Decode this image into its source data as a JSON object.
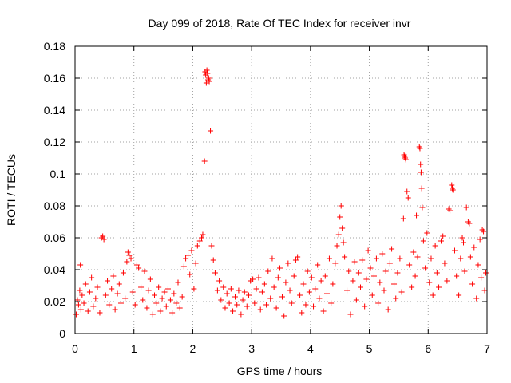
{
  "chart_data": {
    "type": "scatter",
    "title": "Day 099 of 2018, Rate Of TEC Index for receiver invr",
    "xlabel": "GPS time / hours",
    "ylabel": "ROTI / TECUs",
    "xlim": [
      0,
      7
    ],
    "ylim": [
      0,
      0.18
    ],
    "x_ticks": [
      0,
      1,
      2,
      3,
      4,
      5,
      6,
      7
    ],
    "x_tick_labels": [
      "0",
      "1",
      "2",
      "3",
      "4",
      "5",
      "6",
      "7"
    ],
    "y_ticks": [
      0,
      0.02,
      0.04,
      0.06,
      0.08,
      0.1,
      0.12,
      0.14,
      0.16,
      0.18
    ],
    "y_tick_labels": [
      "0",
      "0.02",
      "0.04",
      "0.06",
      "0.08",
      "0.1",
      "0.12",
      "0.14",
      "0.16",
      "0.18"
    ],
    "grid": true,
    "marker": "+",
    "color": "#ff0000",
    "series": [
      {
        "name": "ROTI",
        "points": [
          [
            0.02,
            0.012
          ],
          [
            0.04,
            0.021
          ],
          [
            0.06,
            0.018
          ],
          [
            0.08,
            0.027
          ],
          [
            0.1,
            0.015
          ],
          [
            0.12,
            0.024
          ],
          [
            0.09,
            0.043
          ],
          [
            0.15,
            0.019
          ],
          [
            0.18,
            0.031
          ],
          [
            0.22,
            0.014
          ],
          [
            0.25,
            0.026
          ],
          [
            0.28,
            0.035
          ],
          [
            0.31,
            0.017
          ],
          [
            0.35,
            0.022
          ],
          [
            0.38,
            0.029
          ],
          [
            0.42,
            0.013
          ],
          [
            0.45,
            0.06
          ],
          [
            0.47,
            0.061
          ],
          [
            0.49,
            0.059
          ],
          [
            0.52,
            0.024
          ],
          [
            0.55,
            0.033
          ],
          [
            0.58,
            0.018
          ],
          [
            0.62,
            0.028
          ],
          [
            0.65,
            0.036
          ],
          [
            0.68,
            0.015
          ],
          [
            0.72,
            0.025
          ],
          [
            0.75,
            0.031
          ],
          [
            0.78,
            0.019
          ],
          [
            0.82,
            0.038
          ],
          [
            0.85,
            0.022
          ],
          [
            0.88,
            0.045
          ],
          [
            0.9,
            0.051
          ],
          [
            0.92,
            0.049
          ],
          [
            0.95,
            0.047
          ],
          [
            0.98,
            0.026
          ],
          [
            1.02,
            0.018
          ],
          [
            1.05,
            0.043
          ],
          [
            1.08,
            0.041
          ],
          [
            1.12,
            0.029
          ],
          [
            1.15,
            0.021
          ],
          [
            1.18,
            0.039
          ],
          [
            1.22,
            0.016
          ],
          [
            1.25,
            0.027
          ],
          [
            1.28,
            0.034
          ],
          [
            1.32,
            0.012
          ],
          [
            1.35,
            0.024
          ],
          [
            1.38,
            0.019
          ],
          [
            1.42,
            0.029
          ],
          [
            1.45,
            0.014
          ],
          [
            1.48,
            0.022
          ],
          [
            1.52,
            0.026
          ],
          [
            1.55,
            0.017
          ],
          [
            1.58,
            0.028
          ],
          [
            1.62,
            0.021
          ],
          [
            1.65,
            0.013
          ],
          [
            1.68,
            0.025
          ],
          [
            1.72,
            0.019
          ],
          [
            1.75,
            0.032
          ],
          [
            1.78,
            0.016
          ],
          [
            1.82,
            0.023
          ],
          [
            1.85,
            0.042
          ],
          [
            1.88,
            0.047
          ],
          [
            1.92,
            0.049
          ],
          [
            1.95,
            0.037
          ],
          [
            1.98,
            0.052
          ],
          [
            2.02,
            0.028
          ],
          [
            2.05,
            0.044
          ],
          [
            2.08,
            0.055
          ],
          [
            2.12,
            0.058
          ],
          [
            2.15,
            0.06
          ],
          [
            2.17,
            0.062
          ],
          [
            2.2,
            0.108
          ],
          [
            2.21,
            0.164
          ],
          [
            2.22,
            0.162
          ],
          [
            2.23,
            0.157
          ],
          [
            2.24,
            0.165
          ],
          [
            2.25,
            0.163
          ],
          [
            2.26,
            0.159
          ],
          [
            2.27,
            0.16
          ],
          [
            2.28,
            0.158
          ],
          [
            2.3,
            0.127
          ],
          [
            2.32,
            0.055
          ],
          [
            2.35,
            0.046
          ],
          [
            2.38,
            0.038
          ],
          [
            2.42,
            0.027
          ],
          [
            2.45,
            0.033
          ],
          [
            2.48,
            0.021
          ],
          [
            2.52,
            0.029
          ],
          [
            2.55,
            0.016
          ],
          [
            2.58,
            0.025
          ],
          [
            2.62,
            0.019
          ],
          [
            2.65,
            0.028
          ],
          [
            2.68,
            0.014
          ],
          [
            2.72,
            0.023
          ],
          [
            2.75,
            0.018
          ],
          [
            2.78,
            0.027
          ],
          [
            2.82,
            0.012
          ],
          [
            2.85,
            0.021
          ],
          [
            2.88,
            0.026
          ],
          [
            2.92,
            0.017
          ],
          [
            2.95,
            0.024
          ],
          [
            2.98,
            0.033
          ],
          [
            3.02,
            0.034
          ],
          [
            3.05,
            0.019
          ],
          [
            3.08,
            0.028
          ],
          [
            3.12,
            0.035
          ],
          [
            3.15,
            0.015
          ],
          [
            3.18,
            0.026
          ],
          [
            3.22,
            0.031
          ],
          [
            3.25,
            0.018
          ],
          [
            3.28,
            0.039
          ],
          [
            3.32,
            0.022
          ],
          [
            3.35,
            0.047
          ],
          [
            3.38,
            0.029
          ],
          [
            3.42,
            0.016
          ],
          [
            3.45,
            0.035
          ],
          [
            3.48,
            0.041
          ],
          [
            3.52,
            0.023
          ],
          [
            3.55,
            0.011
          ],
          [
            3.58,
            0.032
          ],
          [
            3.62,
            0.044
          ],
          [
            3.65,
            0.027
          ],
          [
            3.68,
            0.019
          ],
          [
            3.72,
            0.036
          ],
          [
            3.75,
            0.046
          ],
          [
            3.78,
            0.048
          ],
          [
            3.82,
            0.024
          ],
          [
            3.85,
            0.013
          ],
          [
            3.88,
            0.031
          ],
          [
            3.92,
            0.018
          ],
          [
            3.95,
            0.039
          ],
          [
            3.98,
            0.026
          ],
          [
            4.02,
            0.035
          ],
          [
            4.05,
            0.017
          ],
          [
            4.08,
            0.028
          ],
          [
            4.12,
            0.043
          ],
          [
            4.15,
            0.022
          ],
          [
            4.18,
            0.033
          ],
          [
            4.22,
            0.014
          ],
          [
            4.25,
            0.036
          ],
          [
            4.28,
            0.025
          ],
          [
            4.32,
            0.047
          ],
          [
            4.35,
            0.019
          ],
          [
            4.38,
            0.031
          ],
          [
            4.42,
            0.044
          ],
          [
            4.45,
            0.055
          ],
          [
            4.48,
            0.062
          ],
          [
            4.5,
            0.073
          ],
          [
            4.52,
            0.08
          ],
          [
            4.54,
            0.066
          ],
          [
            4.56,
            0.057
          ],
          [
            4.58,
            0.048
          ],
          [
            4.62,
            0.027
          ],
          [
            4.65,
            0.039
          ],
          [
            4.68,
            0.012
          ],
          [
            4.72,
            0.033
          ],
          [
            4.75,
            0.045
          ],
          [
            4.78,
            0.021
          ],
          [
            4.82,
            0.038
          ],
          [
            4.85,
            0.029
          ],
          [
            4.88,
            0.046
          ],
          [
            4.92,
            0.017
          ],
          [
            4.95,
            0.034
          ],
          [
            4.98,
            0.052
          ],
          [
            5.02,
            0.041
          ],
          [
            5.05,
            0.024
          ],
          [
            5.08,
            0.036
          ],
          [
            5.12,
            0.047
          ],
          [
            5.15,
            0.019
          ],
          [
            5.18,
            0.032
          ],
          [
            5.22,
            0.05
          ],
          [
            5.25,
            0.027
          ],
          [
            5.28,
            0.039
          ],
          [
            5.32,
            0.015
          ],
          [
            5.35,
            0.044
          ],
          [
            5.38,
            0.053
          ],
          [
            5.42,
            0.031
          ],
          [
            5.45,
            0.022
          ],
          [
            5.48,
            0.038
          ],
          [
            5.52,
            0.047
          ],
          [
            5.55,
            0.026
          ],
          [
            5.58,
            0.072
          ],
          [
            5.59,
            0.112
          ],
          [
            5.6,
            0.111
          ],
          [
            5.61,
            0.11
          ],
          [
            5.62,
            0.109
          ],
          [
            5.64,
            0.089
          ],
          [
            5.66,
            0.085
          ],
          [
            5.68,
            0.043
          ],
          [
            5.72,
            0.029
          ],
          [
            5.75,
            0.051
          ],
          [
            5.78,
            0.036
          ],
          [
            5.8,
            0.074
          ],
          [
            5.82,
            0.048
          ],
          [
            5.85,
            0.117
          ],
          [
            5.86,
            0.116
          ],
          [
            5.87,
            0.106
          ],
          [
            5.88,
            0.101
          ],
          [
            5.89,
            0.091
          ],
          [
            5.9,
            0.079
          ],
          [
            5.92,
            0.058
          ],
          [
            5.95,
            0.041
          ],
          [
            5.98,
            0.063
          ],
          [
            6.02,
            0.032
          ],
          [
            6.05,
            0.047
          ],
          [
            6.08,
            0.024
          ],
          [
            6.12,
            0.055
          ],
          [
            6.15,
            0.038
          ],
          [
            6.18,
            0.029
          ],
          [
            6.22,
            0.058
          ],
          [
            6.25,
            0.061
          ],
          [
            6.28,
            0.044
          ],
          [
            6.32,
            0.033
          ],
          [
            6.35,
            0.078
          ],
          [
            6.37,
            0.077
          ],
          [
            6.4,
            0.093
          ],
          [
            6.41,
            0.091
          ],
          [
            6.42,
            0.09
          ],
          [
            6.45,
            0.052
          ],
          [
            6.48,
            0.036
          ],
          [
            6.52,
            0.024
          ],
          [
            6.55,
            0.047
          ],
          [
            6.58,
            0.06
          ],
          [
            6.6,
            0.057
          ],
          [
            6.62,
            0.039
          ],
          [
            6.65,
            0.079
          ],
          [
            6.68,
            0.07
          ],
          [
            6.7,
            0.069
          ],
          [
            6.72,
            0.048
          ],
          [
            6.75,
            0.031
          ],
          [
            6.78,
            0.054
          ],
          [
            6.82,
            0.022
          ],
          [
            6.85,
            0.043
          ],
          [
            6.88,
            0.059
          ],
          [
            6.9,
            0.035
          ],
          [
            6.92,
            0.065
          ],
          [
            6.94,
            0.064
          ],
          [
            6.96,
            0.027
          ],
          [
            6.98,
            0.038
          ]
        ]
      }
    ]
  }
}
